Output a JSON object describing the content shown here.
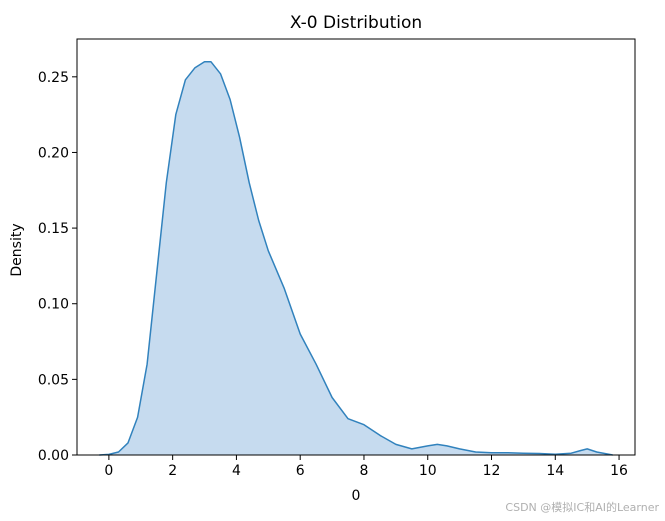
{
  "chart_data": {
    "type": "area",
    "title": "X-0 Distribution",
    "xlabel": "0",
    "ylabel": "Density",
    "xlim": [
      -1,
      16.5
    ],
    "ylim": [
      0,
      0.275
    ],
    "xticks": [
      0,
      2,
      4,
      6,
      8,
      10,
      12,
      14,
      16
    ],
    "yticks": [
      0.0,
      0.05,
      0.1,
      0.15,
      0.2,
      0.25
    ],
    "ytick_labels": [
      "0.00",
      "0.05",
      "0.10",
      "0.15",
      "0.20",
      "0.25"
    ],
    "grid": false,
    "series": [
      {
        "x": [
          -0.3,
          0.0,
          0.3,
          0.6,
          0.9,
          1.2,
          1.5,
          1.8,
          2.1,
          2.4,
          2.7,
          3.0,
          3.2,
          3.5,
          3.8,
          4.1,
          4.4,
          4.7,
          5.0,
          5.5,
          6.0,
          6.5,
          7.0,
          7.5,
          8.0,
          8.5,
          9.0,
          9.5,
          10.0,
          10.3,
          10.6,
          11.0,
          11.5,
          12.0,
          12.5,
          13.0,
          13.5,
          14.0,
          14.5,
          14.8,
          15.0,
          15.3,
          15.8
        ],
        "y": [
          0.0,
          0.0004,
          0.002,
          0.008,
          0.025,
          0.06,
          0.12,
          0.18,
          0.225,
          0.248,
          0.256,
          0.26,
          0.26,
          0.252,
          0.235,
          0.21,
          0.18,
          0.155,
          0.135,
          0.11,
          0.08,
          0.06,
          0.038,
          0.024,
          0.02,
          0.013,
          0.007,
          0.004,
          0.006,
          0.007,
          0.006,
          0.004,
          0.002,
          0.0015,
          0.0015,
          0.0012,
          0.001,
          0.0005,
          0.0012,
          0.003,
          0.004,
          0.002,
          0.0
        ]
      }
    ],
    "colors": {
      "line": "#3182bd",
      "fill": "#c6dbef",
      "axes": "#000000"
    }
  },
  "watermark": "CSDN @模拟IC和AI的Learner"
}
